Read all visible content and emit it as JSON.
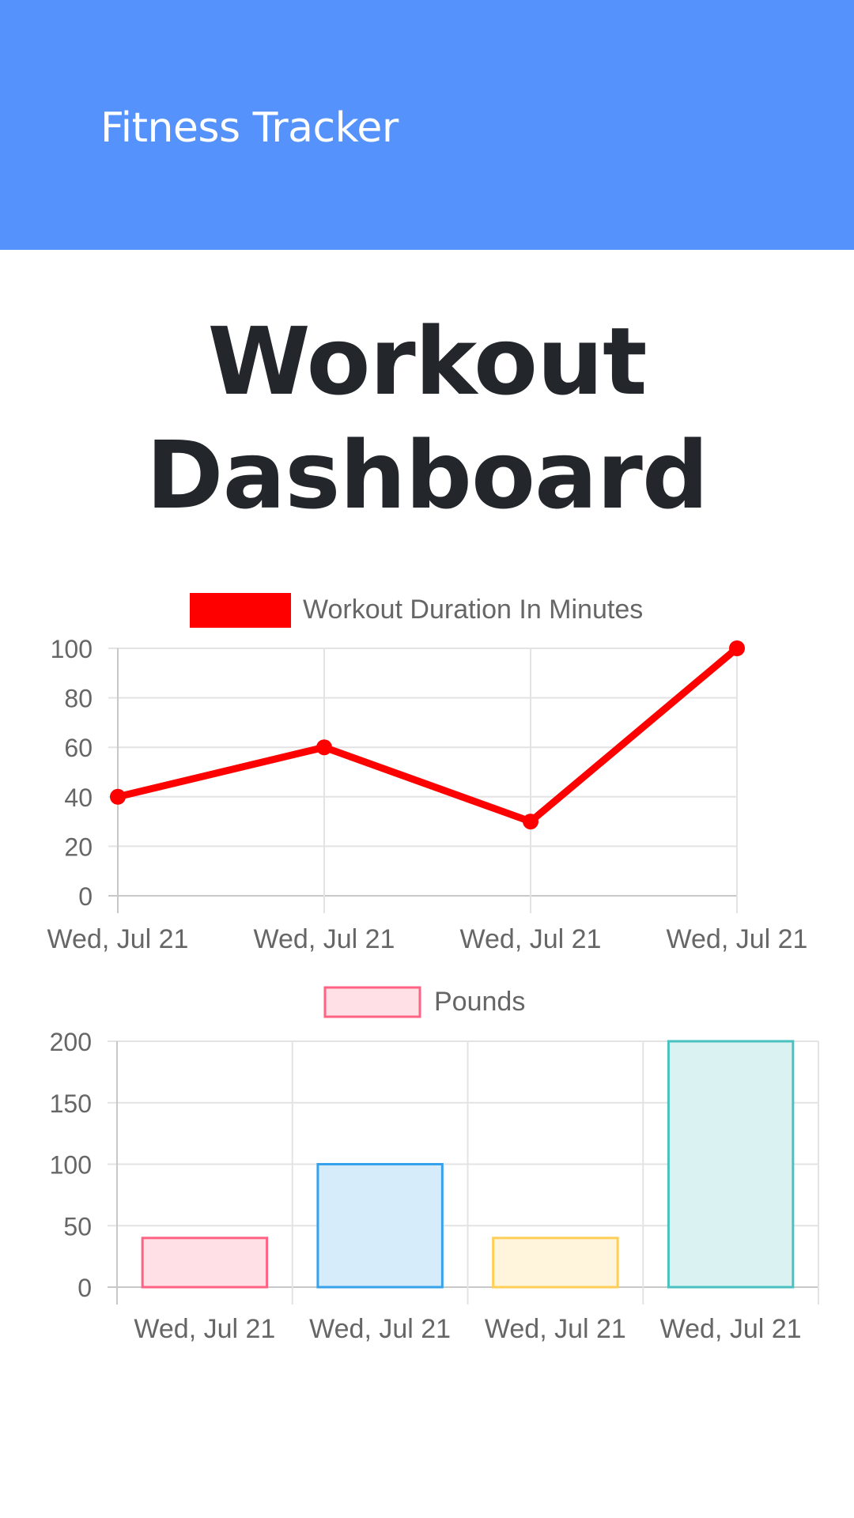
{
  "navbar": {
    "brand": "Fitness Tracker",
    "color": "#5592fb"
  },
  "page": {
    "title": "Workout Dashboard"
  },
  "chart_data": [
    {
      "type": "line",
      "categories": [
        "Wed, Jul 21",
        "Wed, Jul 21",
        "Wed, Jul 21",
        "Wed, Jul 21"
      ],
      "series": [
        {
          "name": "Workout Duration In Minutes",
          "values": [
            40,
            60,
            30,
            100
          ],
          "color": "#ff0000"
        }
      ],
      "ylim": [
        0,
        100
      ],
      "yticks": [
        0,
        20,
        40,
        60,
        80,
        100
      ],
      "grid": true,
      "legend": "top"
    },
    {
      "type": "bar",
      "categories": [
        "Wed, Jul 21",
        "Wed, Jul 21",
        "Wed, Jul 21",
        "Wed, Jul 21"
      ],
      "series": [
        {
          "name": "Pounds",
          "values": [
            40,
            100,
            40,
            200
          ]
        }
      ],
      "bar_colors": [
        {
          "fill": "#ffe0e6",
          "stroke": "#ff6384"
        },
        {
          "fill": "#d7ecfa",
          "stroke": "#36a2eb"
        },
        {
          "fill": "#fff5dd",
          "stroke": "#ffce56"
        },
        {
          "fill": "#dbf2f2",
          "stroke": "#4bc0c0"
        }
      ],
      "ylim": [
        0,
        200
      ],
      "yticks": [
        0,
        50,
        100,
        150,
        200
      ],
      "grid": true,
      "legend": "top"
    }
  ]
}
